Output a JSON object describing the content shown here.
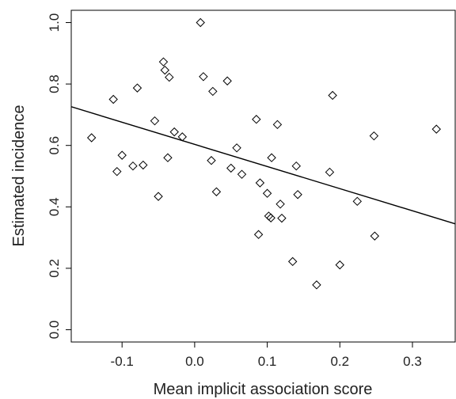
{
  "chart_data": {
    "type": "scatter",
    "title": "",
    "xlabel": "Mean implicit association score",
    "ylabel": "Estimated incidence",
    "xlim": [
      -0.17,
      0.36
    ],
    "ylim": [
      -0.04,
      1.04
    ],
    "x_ticks": [
      -0.1,
      0.0,
      0.1,
      0.2,
      0.3
    ],
    "x_tick_labels": [
      "-0.1",
      "0.0",
      "0.1",
      "0.2",
      "0.3"
    ],
    "y_ticks": [
      0.0,
      0.2,
      0.4,
      0.6,
      0.8,
      1.0
    ],
    "y_tick_labels": [
      "0.0",
      "0.2",
      "0.4",
      "0.6",
      "0.8",
      "1.0"
    ],
    "grid": false,
    "legend": "none",
    "marker": "diamond-open",
    "trend_line": {
      "x": [
        -0.17,
        0.36
      ],
      "y": [
        0.726,
        0.344
      ]
    },
    "points": [
      {
        "x": -0.142,
        "y": 0.625
      },
      {
        "x": -0.112,
        "y": 0.75
      },
      {
        "x": -0.107,
        "y": 0.515
      },
      {
        "x": -0.1,
        "y": 0.568
      },
      {
        "x": -0.085,
        "y": 0.533
      },
      {
        "x": -0.079,
        "y": 0.787
      },
      {
        "x": -0.071,
        "y": 0.536
      },
      {
        "x": -0.055,
        "y": 0.68
      },
      {
        "x": -0.05,
        "y": 0.434
      },
      {
        "x": -0.043,
        "y": 0.872
      },
      {
        "x": -0.041,
        "y": 0.845
      },
      {
        "x": -0.037,
        "y": 0.56
      },
      {
        "x": -0.035,
        "y": 0.822
      },
      {
        "x": -0.028,
        "y": 0.644
      },
      {
        "x": -0.017,
        "y": 0.628
      },
      {
        "x": 0.008,
        "y": 1.0
      },
      {
        "x": 0.012,
        "y": 0.824
      },
      {
        "x": 0.023,
        "y": 0.551
      },
      {
        "x": 0.025,
        "y": 0.776
      },
      {
        "x": 0.03,
        "y": 0.449
      },
      {
        "x": 0.045,
        "y": 0.81
      },
      {
        "x": 0.05,
        "y": 0.526
      },
      {
        "x": 0.058,
        "y": 0.592
      },
      {
        "x": 0.065,
        "y": 0.506
      },
      {
        "x": 0.085,
        "y": 0.685
      },
      {
        "x": 0.088,
        "y": 0.31
      },
      {
        "x": 0.09,
        "y": 0.478
      },
      {
        "x": 0.1,
        "y": 0.444
      },
      {
        "x": 0.102,
        "y": 0.37
      },
      {
        "x": 0.105,
        "y": 0.364
      },
      {
        "x": 0.106,
        "y": 0.56
      },
      {
        "x": 0.114,
        "y": 0.668
      },
      {
        "x": 0.118,
        "y": 0.409
      },
      {
        "x": 0.12,
        "y": 0.363
      },
      {
        "x": 0.135,
        "y": 0.222
      },
      {
        "x": 0.14,
        "y": 0.533
      },
      {
        "x": 0.142,
        "y": 0.44
      },
      {
        "x": 0.168,
        "y": 0.146
      },
      {
        "x": 0.186,
        "y": 0.513
      },
      {
        "x": 0.19,
        "y": 0.763
      },
      {
        "x": 0.2,
        "y": 0.211
      },
      {
        "x": 0.224,
        "y": 0.418
      },
      {
        "x": 0.247,
        "y": 0.631
      },
      {
        "x": 0.248,
        "y": 0.305
      },
      {
        "x": 0.333,
        "y": 0.653
      }
    ]
  }
}
